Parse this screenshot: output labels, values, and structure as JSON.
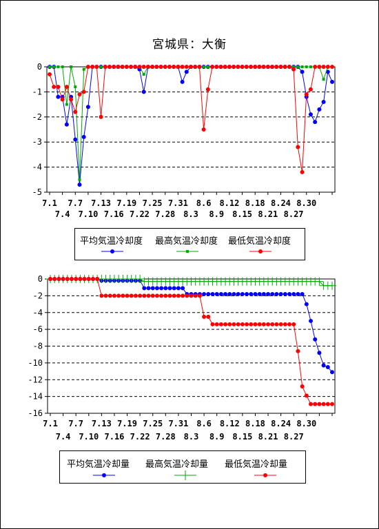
{
  "title": "宮城県：大衡",
  "colors": {
    "avg": "#0000ff",
    "max": "#00aa00",
    "min": "#ff0000"
  },
  "chart_data": [
    {
      "type": "line",
      "ylim": [
        -5,
        0
      ],
      "yticks": [
        "0",
        "-1",
        "-2",
        "-3",
        "-4",
        "-5"
      ],
      "xtick_top": [
        "7.1",
        "7.7",
        "7.13",
        "7.19",
        "7.25",
        "7.31",
        "8.6",
        "8.12",
        "8.18",
        "8.24",
        "8.30"
      ],
      "xtick_bottom": [
        "7.4",
        "7.10",
        "7.16",
        "7.22",
        "7.28",
        "8.3",
        "8.9",
        "8.15",
        "8.21",
        "8.27"
      ],
      "series": [
        {
          "name": "平均気温冷却度",
          "color": "#0000ff",
          "marker": "circle",
          "values": [
            0,
            0,
            -1.2,
            -1.2,
            -2.3,
            -1.2,
            -2.9,
            -4.7,
            -2.8,
            -1.6,
            0,
            0,
            0,
            0,
            0,
            0,
            0,
            0,
            0,
            0,
            0,
            -0.1,
            -1.0,
            0,
            0,
            0,
            0,
            0,
            0,
            0,
            0,
            -0.6,
            -0.2,
            0,
            0,
            0,
            0,
            0,
            0,
            0,
            0,
            0,
            0,
            0,
            0,
            0,
            0,
            0,
            0,
            0,
            0,
            0,
            0,
            0,
            0,
            0,
            0,
            0,
            0,
            -0.2,
            -1.2,
            -1.9,
            -2.2,
            -1.7,
            -1.4,
            -0.2,
            -0.6
          ]
        },
        {
          "name": "最高気温冷却度",
          "color": "#00aa00",
          "marker": "square",
          "values": [
            0,
            0,
            0,
            0,
            -1.5,
            0,
            -0.8,
            -4.5,
            -0.1,
            0,
            0,
            0,
            0,
            0,
            0,
            0,
            0,
            0,
            0,
            0,
            0,
            0,
            -0.3,
            0,
            0,
            0,
            0,
            0,
            0,
            0,
            0,
            0,
            0,
            0,
            0,
            0,
            0,
            0,
            0,
            0,
            0,
            0,
            0,
            0,
            0,
            0,
            0,
            0,
            0,
            0,
            0,
            0,
            0,
            0,
            0,
            0,
            0,
            0,
            0,
            0,
            0,
            0,
            0,
            0,
            -0.5,
            0,
            0
          ]
        },
        {
          "name": "最低気温冷却度",
          "color": "#ff0000",
          "marker": "circle",
          "values": [
            -0.3,
            -0.8,
            -0.8,
            -1.3,
            -0.8,
            -1.3,
            -1.8,
            -1.1,
            -1.0,
            0,
            0,
            0,
            -2.0,
            0,
            0,
            0,
            0,
            0,
            0,
            0,
            0,
            0,
            0,
            0,
            0,
            0,
            0,
            0,
            0,
            0,
            0,
            0,
            0,
            0,
            0,
            0,
            -2.5,
            -0.9,
            0,
            0,
            0,
            0,
            0,
            0,
            0,
            0,
            0,
            0,
            0,
            0,
            0,
            0,
            0,
            0,
            0,
            0,
            0,
            -0.1,
            -3.2,
            -4.2,
            -1.1,
            -0.9,
            0,
            0,
            0,
            0,
            0
          ]
        }
      ],
      "legend": {
        "labels": [
          "平均気温冷却度",
          "最高気温冷却度",
          "最低気温冷却度"
        ]
      }
    },
    {
      "type": "line",
      "ylim": [
        -16,
        0
      ],
      "yticks": [
        "0",
        "-2",
        "-4",
        "-6",
        "-8",
        "-10",
        "-12",
        "-14",
        "-16"
      ],
      "xtick_top": [
        "7.1",
        "7.7",
        "7.13",
        "7.19",
        "7.25",
        "7.31",
        "8.6",
        "8.12",
        "8.18",
        "8.24",
        "8.30"
      ],
      "xtick_bottom": [
        "7.4",
        "7.10",
        "7.16",
        "7.22",
        "7.28",
        "8.3",
        "8.9",
        "8.15",
        "8.21",
        "8.27"
      ],
      "series": [
        {
          "name": "平均気温冷却量",
          "color": "#0000ff",
          "marker": "circle",
          "values": [
            0,
            0,
            0,
            0,
            0,
            0,
            0,
            0,
            0,
            0,
            0,
            0,
            -0.2,
            -0.2,
            -0.2,
            -0.2,
            -0.2,
            -0.2,
            -0.2,
            -0.2,
            -0.2,
            -0.2,
            -1.1,
            -1.1,
            -1.1,
            -1.1,
            -1.1,
            -1.1,
            -1.1,
            -1.1,
            -1.1,
            -1.1,
            -1.8,
            -1.8,
            -1.8,
            -1.8,
            -1.8,
            -1.8,
            -1.8,
            -1.8,
            -1.8,
            -1.8,
            -1.8,
            -1.8,
            -1.8,
            -1.8,
            -1.8,
            -1.8,
            -1.8,
            -1.8,
            -1.8,
            -1.8,
            -1.8,
            -1.8,
            -1.8,
            -1.8,
            -1.8,
            -1.8,
            -1.8,
            -1.8,
            -3.0,
            -5.0,
            -7.2,
            -8.8,
            -10.3,
            -10.5,
            -11.1
          ]
        },
        {
          "name": "最高気温冷却量",
          "color": "#00aa00",
          "marker": "plus",
          "values": [
            0,
            0,
            0,
            0,
            0,
            0,
            0,
            0,
            0,
            0,
            0,
            0,
            0,
            0,
            0,
            0,
            0,
            0,
            0,
            0,
            0,
            0,
            -0.3,
            -0.3,
            -0.3,
            -0.3,
            -0.3,
            -0.3,
            -0.3,
            -0.3,
            -0.3,
            -0.3,
            -0.3,
            -0.3,
            -0.3,
            -0.3,
            -0.3,
            -0.3,
            -0.3,
            -0.3,
            -0.3,
            -0.3,
            -0.3,
            -0.3,
            -0.3,
            -0.3,
            -0.3,
            -0.3,
            -0.3,
            -0.3,
            -0.3,
            -0.3,
            -0.3,
            -0.3,
            -0.3,
            -0.3,
            -0.3,
            -0.3,
            -0.3,
            -0.3,
            -0.3,
            -0.3,
            -0.3,
            -0.3,
            -0.8,
            -0.8,
            -0.8
          ]
        },
        {
          "name": "最低気温冷却量",
          "color": "#ff0000",
          "marker": "circle",
          "values": [
            0,
            0,
            0,
            0,
            0,
            0,
            0,
            0,
            0,
            0,
            0,
            0,
            -2.0,
            -2.0,
            -2.0,
            -2.0,
            -2.0,
            -2.0,
            -2.0,
            -2.0,
            -2.0,
            -2.0,
            -2.0,
            -2.0,
            -2.0,
            -2.0,
            -2.0,
            -2.0,
            -2.0,
            -2.0,
            -2.0,
            -2.0,
            -2.0,
            -2.0,
            -2.0,
            -2.0,
            -4.5,
            -4.5,
            -5.4,
            -5.4,
            -5.4,
            -5.4,
            -5.4,
            -5.4,
            -5.4,
            -5.4,
            -5.4,
            -5.4,
            -5.4,
            -5.4,
            -5.4,
            -5.4,
            -5.4,
            -5.4,
            -5.4,
            -5.4,
            -5.4,
            -5.4,
            -8.6,
            -12.8,
            -13.9,
            -14.9,
            -14.9,
            -14.9,
            -14.9,
            -14.9,
            -14.9
          ]
        }
      ],
      "legend": {
        "labels": [
          "平均気温冷却量",
          "最高気温冷却量",
          "最低気温冷却量"
        ]
      }
    }
  ]
}
